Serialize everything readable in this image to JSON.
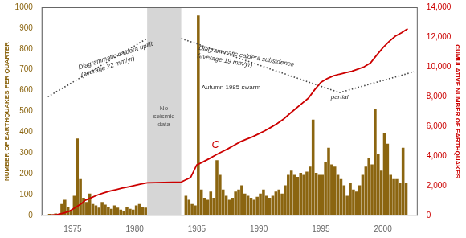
{
  "chart_data": {
    "type": "bar",
    "y_label": "NUMBER OF EARTHQUAKES PER QUARTER",
    "y2_label": "CUMULATIVE NUMBER OF EARTHQUAKES",
    "xlim": [
      1972.5,
      2002.8
    ],
    "xticks": [
      1975,
      1980,
      1985,
      1990,
      1995,
      2000
    ],
    "ylim": [
      0,
      1000
    ],
    "yticks": [
      0,
      100,
      200,
      300,
      400,
      500,
      600,
      700,
      800,
      900,
      1000
    ],
    "y2lim": [
      0,
      14000
    ],
    "y2ticks": [
      0,
      {
        "value": 2000,
        "label": "2,000"
      },
      {
        "value": 4000,
        "label": "4,000"
      },
      {
        "value": 6000,
        "label": "6,000"
      },
      {
        "value": 8000,
        "label": "8,000"
      },
      {
        "value": 10000,
        "label": "10,000"
      },
      {
        "value": 12000,
        "label": "12,000"
      },
      {
        "value": 14000,
        "label": "14,000"
      }
    ],
    "grid": false,
    "shaded_span": {
      "x": [
        1981.0,
        1983.75
      ],
      "color": "#cccccc"
    },
    "series": [
      {
        "type": "bar",
        "color": "#8B6510",
        "x": [
          1973.125,
          1973.375,
          1973.625,
          1973.875,
          1974.125,
          1974.375,
          1974.625,
          1974.875,
          1975.125,
          1975.375,
          1975.625,
          1975.875,
          1976.125,
          1976.375,
          1976.625,
          1976.875,
          1977.125,
          1977.375,
          1977.625,
          1977.875,
          1978.125,
          1978.375,
          1978.625,
          1978.875,
          1979.125,
          1979.375,
          1979.625,
          1979.875,
          1980.125,
          1980.375,
          1980.625,
          1980.875,
          1984.125,
          1984.375,
          1984.625,
          1984.875,
          1985.125,
          1985.375,
          1985.625,
          1985.875,
          1986.125,
          1986.375,
          1986.625,
          1986.875,
          1987.125,
          1987.375,
          1987.625,
          1987.875,
          1988.125,
          1988.375,
          1988.625,
          1988.875,
          1989.125,
          1989.375,
          1989.625,
          1989.875,
          1990.125,
          1990.375,
          1990.625,
          1990.875,
          1991.125,
          1991.375,
          1991.625,
          1991.875,
          1992.125,
          1992.375,
          1992.625,
          1992.875,
          1993.125,
          1993.375,
          1993.625,
          1993.875,
          1994.125,
          1994.375,
          1994.625,
          1994.875,
          1995.125,
          1995.375,
          1995.625,
          1995.875,
          1996.125,
          1996.375,
          1996.625,
          1996.875,
          1997.125,
          1997.375,
          1997.625,
          1997.875,
          1998.125,
          1998.375,
          1998.625,
          1998.875,
          1999.125,
          1999.375,
          1999.625,
          1999.875,
          2000.125,
          2000.375,
          2000.625,
          2000.875,
          2001.125,
          2001.375,
          2001.625,
          2001.875
        ],
        "values": [
          8,
          6,
          10,
          4,
          55,
          75,
          40,
          25,
          95,
          370,
          175,
          85,
          65,
          105,
          55,
          48,
          38,
          65,
          52,
          42,
          32,
          48,
          38,
          28,
          22,
          42,
          32,
          28,
          48,
          55,
          42,
          38,
          95,
          75,
          55,
          48,
          960,
          125,
          85,
          75,
          115,
          85,
          265,
          195,
          125,
          95,
          75,
          85,
          115,
          125,
          145,
          105,
          95,
          85,
          75,
          90,
          105,
          125,
          95,
          85,
          95,
          115,
          125,
          105,
          145,
          195,
          215,
          195,
          185,
          205,
          195,
          210,
          235,
          460,
          205,
          195,
          195,
          255,
          325,
          245,
          235,
          195,
          175,
          145,
          95,
          155,
          125,
          115,
          145,
          195,
          235,
          275,
          245,
          510,
          295,
          215,
          395,
          345,
          195,
          175,
          175,
          155,
          325,
          155
        ]
      },
      {
        "type": "line",
        "color": "#444444",
        "line_style": "dotted",
        "x": [
          1973.0,
          1981.0
        ],
        "values": [
          570,
          850
        ]
      },
      {
        "type": "line",
        "color": "#444444",
        "line_style": "dotted",
        "x": [
          1983.75,
          1996.5,
          2002.5
        ],
        "values": [
          850,
          590,
          690
        ]
      },
      {
        "type": "line",
        "color": "#cc0000",
        "axis": "y2",
        "x": [
          1973.0,
          1973.25,
          1973.75,
          1974.25,
          1974.75,
          1975.0,
          1975.25,
          1975.75,
          1976.0,
          1976.5,
          1977.0,
          1977.5,
          1978.0,
          1978.5,
          1979.0,
          1979.5,
          1980.0,
          1980.5,
          1981.0,
          1983.75,
          1984.0,
          1984.5,
          1985.0,
          1985.5,
          1986.0,
          1986.5,
          1987.0,
          1987.5,
          1988.0,
          1988.5,
          1989.0,
          1989.5,
          1990.0,
          1990.5,
          1991.0,
          1991.5,
          1992.0,
          1992.5,
          1993.0,
          1993.5,
          1994.0,
          1994.5,
          1995.0,
          1995.5,
          1996.0,
          1996.5,
          1997.0,
          1997.5,
          1998.0,
          1998.5,
          1999.0,
          1999.5,
          2000.0,
          2000.5,
          2001.0,
          2001.5,
          2002.0
        ],
        "values": [
          0,
          20,
          60,
          160,
          290,
          420,
          550,
          820,
          1020,
          1200,
          1380,
          1520,
          1640,
          1740,
          1840,
          1930,
          2020,
          2110,
          2200,
          2250,
          2350,
          2550,
          3400,
          3600,
          3820,
          4050,
          4270,
          4480,
          4720,
          4950,
          5130,
          5290,
          5490,
          5700,
          5940,
          6190,
          6490,
          6850,
          7200,
          7550,
          7890,
          8450,
          8950,
          9200,
          9380,
          9500,
          9600,
          9700,
          9840,
          10000,
          10250,
          10780,
          11280,
          11700,
          12050,
          12280,
          12550
        ]
      }
    ],
    "annotations": [
      {
        "text": "Diagrammatic caldera uplift\n(average 22 mm/yr)",
        "x": 1975.8,
        "y": 650
      },
      {
        "text": "Diagrammatic caldera subsidence\n(average 19 mm/yr)",
        "x": 1985.2,
        "y": 820
      },
      {
        "text": "No\nseismic\ndata",
        "x": 1982.35,
        "y": 530
      },
      {
        "text": "Autumn 1985 swarm",
        "x": 1985.05,
        "y": 590
      },
      {
        "text": "C",
        "x": 1986.2,
        "y": 4200,
        "axis": "y2"
      },
      {
        "text": "partial",
        "x": 1995.8,
        "y": 565
      }
    ]
  }
}
